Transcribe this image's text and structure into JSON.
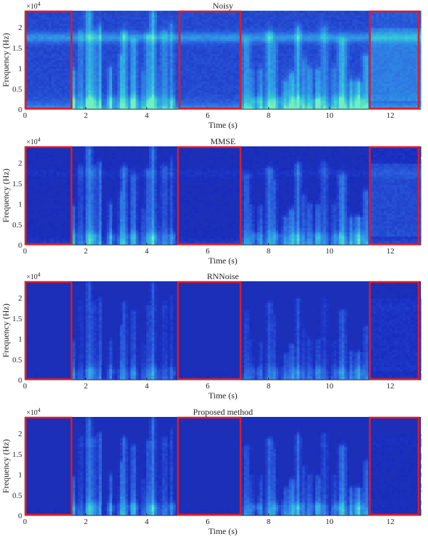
{
  "figure": {
    "colors": {
      "background": "#1c2fb8",
      "highlight_box": "#e01b24",
      "axis": "#262626",
      "colormap": [
        "#0d1aa8",
        "#1e37c8",
        "#2d68e0",
        "#2f9be6",
        "#35c8d8",
        "#6ff0c0"
      ]
    },
    "xlabel": "Time (s)",
    "ylabel": "Frequency (Hz)",
    "y_multiplier": "×10",
    "y_exponent": "4"
  },
  "chart_data": [
    {
      "type": "heatmap",
      "title": "Noisy",
      "xlabel": "Time (s)",
      "ylabel": "Frequency (Hz)",
      "xlim": [
        0,
        13
      ],
      "ylim": [
        0,
        2.4
      ],
      "x_ticks": [
        0,
        2,
        4,
        6,
        8,
        10,
        12
      ],
      "y_ticks": [
        0,
        0.5,
        1,
        1.5,
        2
      ],
      "y_tick_labels": [
        "0",
        "0.5",
        "1",
        "1.5",
        "2"
      ],
      "noise_floor": 0.34,
      "hf_band": 0.3,
      "speech_gain": 1.0,
      "tail_band": 0.35,
      "highlight_regions": [
        [
          0,
          1.55
        ],
        [
          5.05,
          7.1
        ],
        [
          11.3,
          12.95
        ]
      ]
    },
    {
      "type": "heatmap",
      "title": "MMSE",
      "xlabel": "Time (s)",
      "ylabel": "Frequency (Hz)",
      "xlim": [
        0,
        13
      ],
      "ylim": [
        0,
        2.4
      ],
      "x_ticks": [
        0,
        2,
        4,
        6,
        8,
        10,
        12
      ],
      "y_ticks": [
        0,
        0.5,
        1,
        1.5,
        2
      ],
      "y_tick_labels": [
        "0",
        "0.5",
        "1",
        "1.5",
        "2"
      ],
      "noise_floor": 0.12,
      "hf_band": 0.08,
      "speech_gain": 0.9,
      "tail_band": 0.3,
      "highlight_regions": [
        [
          0,
          1.55
        ],
        [
          5.0,
          7.1
        ],
        [
          11.3,
          12.95
        ]
      ]
    },
    {
      "type": "heatmap",
      "title": "RNNoise",
      "xlabel": "Time (s)",
      "ylabel": "Frequency (Hz)",
      "xlim": [
        0,
        13
      ],
      "ylim": [
        0,
        2.4
      ],
      "x_ticks": [
        0,
        2,
        4,
        6,
        8,
        10,
        12
      ],
      "y_ticks": [
        0,
        0.5,
        1,
        1.5,
        2
      ],
      "y_tick_labels": [
        "0",
        "0.5",
        "1",
        "1.5",
        "2"
      ],
      "noise_floor": 0.06,
      "hf_band": 0.02,
      "speech_gain": 0.7,
      "tail_band": 0.2,
      "highlight_regions": [
        [
          0,
          1.55
        ],
        [
          5.0,
          7.1
        ],
        [
          11.3,
          12.95
        ]
      ]
    },
    {
      "type": "heatmap",
      "title": "Proposed method",
      "xlabel": "Time (s)",
      "ylabel": "Frequency (Hz)",
      "xlim": [
        0,
        13
      ],
      "ylim": [
        0,
        2.4
      ],
      "x_ticks": [
        0,
        2,
        4,
        6,
        8,
        10,
        12
      ],
      "y_ticks": [
        0,
        0.5,
        1,
        1.5,
        2
      ],
      "y_tick_labels": [
        "0",
        "0.5",
        "1",
        "1.5",
        "2"
      ],
      "noise_floor": 0.05,
      "hf_band": 0.04,
      "speech_gain": 0.95,
      "tail_band": 0.12,
      "highlight_regions": [
        [
          0,
          1.55
        ],
        [
          5.0,
          7.1
        ],
        [
          11.3,
          12.95
        ]
      ]
    }
  ]
}
